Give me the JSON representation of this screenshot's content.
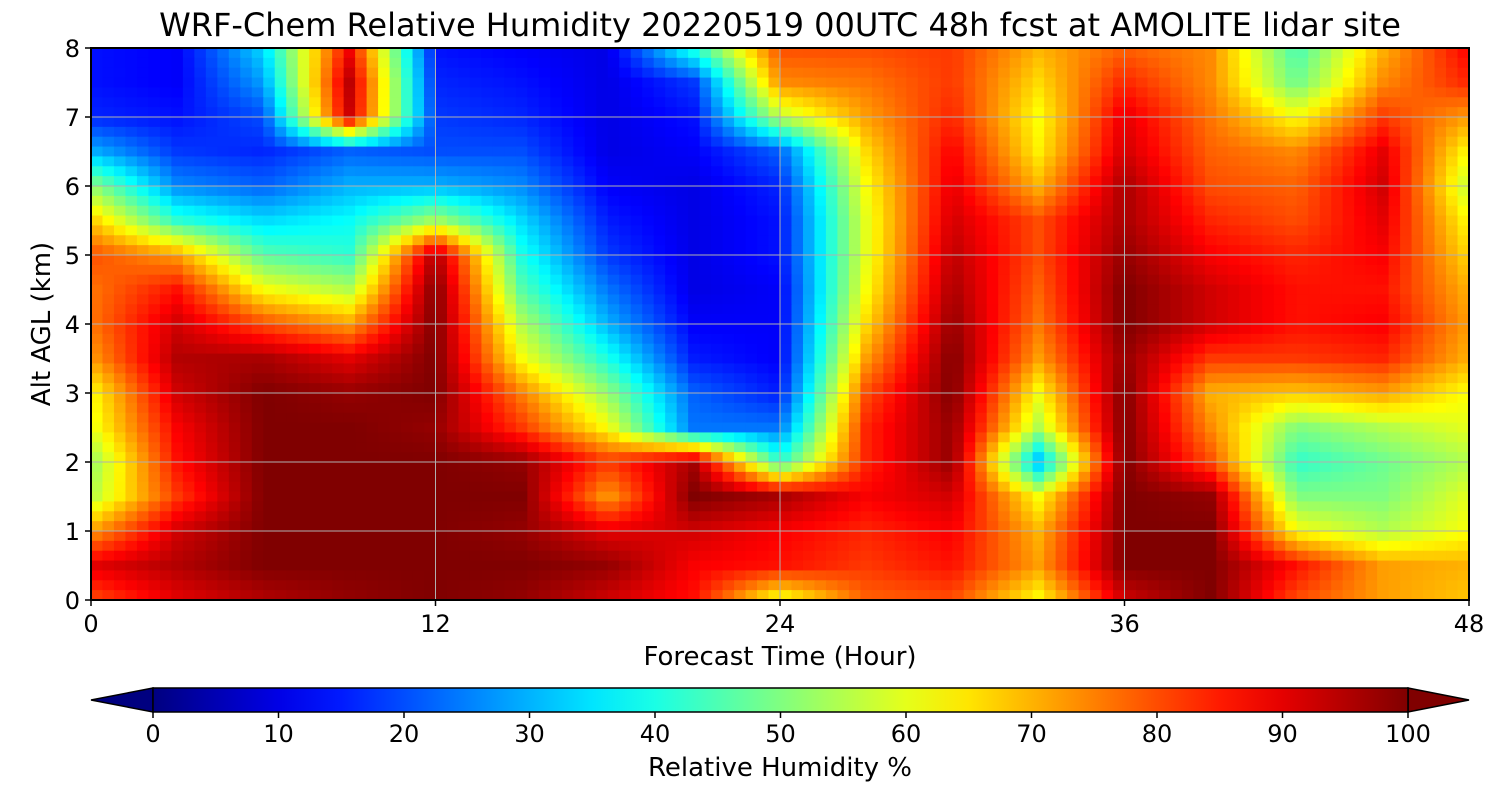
{
  "chart_data": {
    "type": "heatmap",
    "title": "WRF-Chem Relative Humidity 20220519 00UTC 48h fcst at AMOLITE lidar site",
    "xlabel": "Forecast Time (Hour)",
    "ylabel": "Alt AGL (km)",
    "xlim": [
      0,
      48
    ],
    "ylim": [
      0,
      8
    ],
    "x_ticks": [
      "0",
      "12",
      "24",
      "36",
      "48"
    ],
    "y_ticks": [
      "0",
      "1",
      "2",
      "3",
      "4",
      "5",
      "6",
      "7",
      "8"
    ],
    "grid": true,
    "colormap": "jet",
    "colorbar": {
      "label": "Relative Humidity %",
      "min": 0,
      "max": 100,
      "ticks": [
        "0",
        "10",
        "20",
        "30",
        "40",
        "50",
        "60",
        "70",
        "80",
        "90",
        "100"
      ],
      "extend": "both"
    },
    "x": [
      0,
      3,
      6,
      9,
      12,
      15,
      18,
      21,
      24,
      27,
      30,
      33,
      36,
      39,
      42,
      45,
      48
    ],
    "y": [
      0,
      0.5,
      1,
      1.5,
      2,
      2.5,
      3,
      3.5,
      4,
      4.5,
      5,
      5.5,
      6,
      6.5,
      7,
      7.5,
      8
    ],
    "z": [
      [
        80,
        90,
        95,
        98,
        100,
        98,
        92,
        86,
        60,
        78,
        80,
        62,
        92,
        100,
        80,
        72,
        68
      ],
      [
        90,
        95,
        100,
        100,
        100,
        100,
        98,
        88,
        86,
        82,
        86,
        72,
        100,
        100,
        86,
        72,
        70
      ],
      [
        72,
        92,
        100,
        100,
        100,
        98,
        90,
        92,
        88,
        84,
        88,
        70,
        100,
        100,
        62,
        55,
        62
      ],
      [
        55,
        82,
        100,
        100,
        100,
        100,
        72,
        100,
        96,
        88,
        92,
        62,
        100,
        98,
        50,
        50,
        60
      ],
      [
        52,
        86,
        100,
        100,
        100,
        98,
        82,
        96,
        42,
        84,
        98,
        30,
        100,
        80,
        42,
        48,
        55
      ],
      [
        60,
        88,
        100,
        100,
        98,
        82,
        62,
        24,
        24,
        84,
        98,
        55,
        100,
        74,
        50,
        55,
        60
      ],
      [
        62,
        92,
        100,
        98,
        100,
        75,
        52,
        22,
        15,
        80,
        100,
        62,
        100,
        70,
        68,
        72,
        62
      ],
      [
        72,
        95,
        96,
        90,
        100,
        62,
        40,
        15,
        12,
        72,
        100,
        72,
        98,
        82,
        82,
        84,
        70
      ],
      [
        76,
        92,
        80,
        72,
        100,
        55,
        30,
        12,
        12,
        66,
        98,
        76,
        100,
        92,
        86,
        88,
        72
      ],
      [
        76,
        86,
        62,
        55,
        100,
        46,
        24,
        10,
        12,
        62,
        96,
        78,
        100,
        92,
        86,
        86,
        70
      ],
      [
        80,
        72,
        46,
        42,
        96,
        40,
        18,
        10,
        14,
        60,
        94,
        80,
        98,
        88,
        84,
        88,
        66
      ],
      [
        68,
        42,
        34,
        38,
        54,
        34,
        15,
        10,
        14,
        60,
        92,
        80,
        96,
        84,
        80,
        90,
        62
      ],
      [
        52,
        26,
        22,
        30,
        30,
        26,
        12,
        10,
        16,
        62,
        90,
        70,
        96,
        80,
        78,
        92,
        56
      ],
      [
        30,
        18,
        16,
        22,
        20,
        20,
        10,
        12,
        22,
        66,
        88,
        64,
        92,
        78,
        74,
        90,
        62
      ],
      [
        16,
        14,
        20,
        92,
        18,
        16,
        10,
        14,
        56,
        72,
        84,
        62,
        90,
        76,
        62,
        82,
        72
      ],
      [
        14,
        12,
        28,
        94,
        16,
        14,
        10,
        18,
        74,
        76,
        82,
        66,
        84,
        74,
        48,
        74,
        84
      ],
      [
        14,
        12,
        34,
        88,
        14,
        12,
        10,
        42,
        80,
        80,
        82,
        70,
        78,
        74,
        44,
        70,
        88
      ]
    ]
  }
}
